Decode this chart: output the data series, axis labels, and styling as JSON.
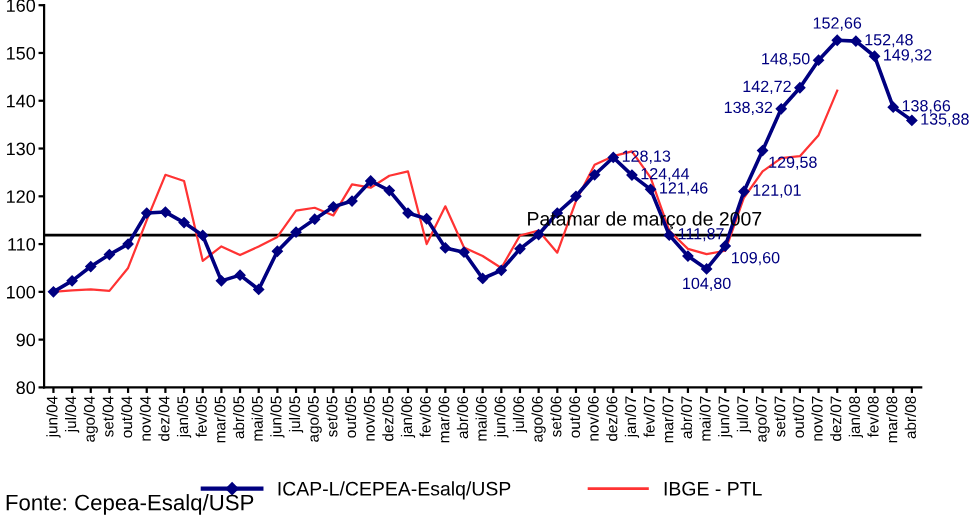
{
  "chart_data": {
    "type": "line",
    "categories": [
      "jun/04",
      "jul/04",
      "ago/04",
      "set/04",
      "out/04",
      "nov/04",
      "dez/04",
      "jan/05",
      "fev/05",
      "mar/05",
      "abr/05",
      "mai/05",
      "jun/05",
      "jul/05",
      "ago/05",
      "set/05",
      "out/05",
      "nov/05",
      "dez/05",
      "jan/06",
      "fev/06",
      "mar/06",
      "abr/06",
      "mai/06",
      "jun/06",
      "jul/06",
      "ago/06",
      "set/06",
      "out/06",
      "nov/06",
      "dez/06",
      "jan/07",
      "fev/07",
      "mar/07",
      "abr/07",
      "mai/07",
      "jun/07",
      "jul/07",
      "ago/07",
      "set/07",
      "out/07",
      "nov/07",
      "dez/07",
      "jan/08",
      "fev/08",
      "mar/08",
      "abr/08"
    ],
    "series": [
      {
        "name": "ICAP-L/CEPEA-Esalq/USP",
        "color": "#000080",
        "marker": "diamond",
        "values": [
          100,
          102.3,
          105.3,
          107.8,
          110,
          116.5,
          116.7,
          114.5,
          111.8,
          102.3,
          103.5,
          100.5,
          108.5,
          112.5,
          115.2,
          117.8,
          119,
          123.2,
          121.2,
          116.5,
          115.3,
          109.2,
          108.3,
          102.8,
          104.5,
          109,
          112,
          116.5,
          120,
          124.5,
          128.13,
          124.44,
          121.46,
          111.87,
          107.5,
          104.8,
          109.6,
          121.01,
          129.58,
          138.32,
          142.72,
          148.5,
          152.66,
          152.48,
          149.32,
          138.66,
          135.88
        ],
        "value_labels": [
          null,
          null,
          null,
          null,
          null,
          null,
          null,
          null,
          null,
          null,
          null,
          null,
          null,
          null,
          null,
          null,
          null,
          null,
          null,
          null,
          null,
          null,
          null,
          null,
          null,
          null,
          null,
          null,
          null,
          null,
          "128,13",
          "124,44",
          "121,46",
          "111,87",
          null,
          "104,80",
          "109,60",
          "121,01",
          "129,58",
          "138,32",
          "142,72",
          "148,50",
          "152,66",
          "152,48",
          "149,32",
          "138,66",
          "135,88"
        ]
      },
      {
        "name": "IBGE - PTL",
        "color": "#ff3333",
        "marker": "none",
        "values": [
          100,
          100.3,
          100.5,
          100.2,
          105,
          115,
          124.5,
          123.2,
          106.5,
          109.5,
          107.7,
          109.5,
          111.5,
          117,
          117.6,
          116,
          122.5,
          121.8,
          124.3,
          125.2,
          110,
          117.9,
          109.3,
          107.5,
          105,
          111.8,
          112.8,
          108.2,
          119,
          126.6,
          128.4,
          129.4,
          123.9,
          112.8,
          109,
          107.9,
          108.6,
          119.7,
          125.2,
          128,
          128.4,
          132.8,
          142.1,
          null,
          null,
          null,
          null
        ]
      }
    ],
    "ylim": [
      80,
      160
    ],
    "yticks": [
      80,
      90,
      100,
      110,
      120,
      130,
      140,
      150,
      160
    ],
    "grid": false,
    "legend": "bottom",
    "ref_lines": [
      {
        "axis": "y",
        "value": 111.87,
        "label": "Patamar de março de 2007",
        "color": "#000000"
      }
    ],
    "annotations": [
      "Fonte: Cepea-Esalq/USP"
    ]
  }
}
